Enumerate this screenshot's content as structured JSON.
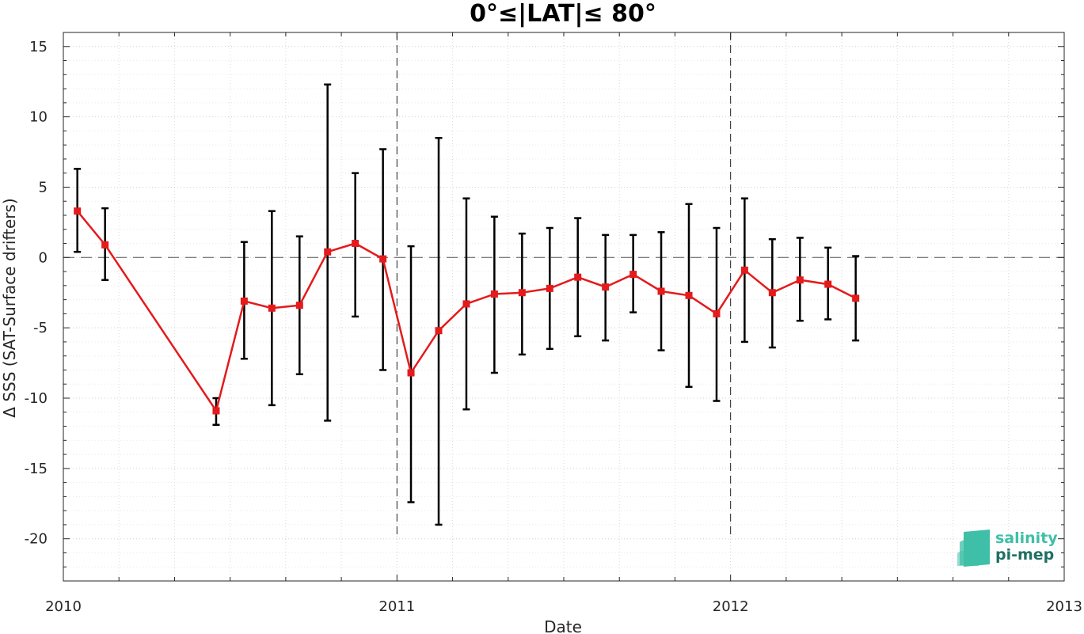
{
  "chart_data": {
    "type": "line",
    "title": "0°≤|LAT|≤ 80°",
    "xlabel": "Date",
    "ylabel": "Δ SSS (SAT-Surface drifters)",
    "xlim": [
      2010,
      2013
    ],
    "ylim": [
      -23,
      16
    ],
    "x_ticks": [
      "2010",
      "2011",
      "2012",
      "2013"
    ],
    "y_ticks": [
      15,
      10,
      5,
      0,
      -5,
      -10,
      -15,
      -20
    ],
    "y_tick_labels": [
      "15",
      "10",
      "5",
      "0",
      "-5",
      "-10",
      "-15",
      "-20"
    ],
    "grid": true,
    "zero_line": 0,
    "year_markers": [
      2011,
      2012
    ],
    "series": [
      {
        "color": "#e41a1c",
        "error_color": "#000000",
        "points": [
          {
            "x": 2010.042,
            "y": 3.3,
            "lower": 0.4,
            "upper": 6.3
          },
          {
            "x": 2010.125,
            "y": 0.9,
            "lower": -1.6,
            "upper": 3.5
          },
          {
            "x": 2010.458,
            "y": -10.9,
            "lower": -11.9,
            "upper": -10.0
          },
          {
            "x": 2010.542,
            "y": -3.1,
            "lower": -7.2,
            "upper": 1.1
          },
          {
            "x": 2010.625,
            "y": -3.6,
            "lower": -10.5,
            "upper": 3.3
          },
          {
            "x": 2010.708,
            "y": -3.4,
            "lower": -8.3,
            "upper": 1.5
          },
          {
            "x": 2010.792,
            "y": 0.4,
            "lower": -11.6,
            "upper": 12.3
          },
          {
            "x": 2010.875,
            "y": 1.0,
            "lower": -4.2,
            "upper": 6.0
          },
          {
            "x": 2010.958,
            "y": -0.1,
            "lower": -8.0,
            "upper": 7.7
          },
          {
            "x": 2011.042,
            "y": -8.2,
            "lower": -17.4,
            "upper": 0.8
          },
          {
            "x": 2011.125,
            "y": -5.2,
            "lower": -19.0,
            "upper": 8.5
          },
          {
            "x": 2011.208,
            "y": -3.3,
            "lower": -10.8,
            "upper": 4.2
          },
          {
            "x": 2011.292,
            "y": -2.6,
            "lower": -8.2,
            "upper": 2.9
          },
          {
            "x": 2011.375,
            "y": -2.5,
            "lower": -6.9,
            "upper": 1.7
          },
          {
            "x": 2011.458,
            "y": -2.2,
            "lower": -6.5,
            "upper": 2.1
          },
          {
            "x": 2011.542,
            "y": -1.4,
            "lower": -5.6,
            "upper": 2.8
          },
          {
            "x": 2011.625,
            "y": -2.1,
            "lower": -5.9,
            "upper": 1.6
          },
          {
            "x": 2011.708,
            "y": -1.2,
            "lower": -3.9,
            "upper": 1.6
          },
          {
            "x": 2011.792,
            "y": -2.4,
            "lower": -6.6,
            "upper": 1.8
          },
          {
            "x": 2011.875,
            "y": -2.7,
            "lower": -9.2,
            "upper": 3.8
          },
          {
            "x": 2011.958,
            "y": -4.0,
            "lower": -10.2,
            "upper": 2.1
          },
          {
            "x": 2012.042,
            "y": -0.9,
            "lower": -6.0,
            "upper": 4.2
          },
          {
            "x": 2012.125,
            "y": -2.5,
            "lower": -6.4,
            "upper": 1.3
          },
          {
            "x": 2012.208,
            "y": -1.6,
            "lower": -4.5,
            "upper": 1.4
          },
          {
            "x": 2012.292,
            "y": -1.9,
            "lower": -4.4,
            "upper": 0.7
          },
          {
            "x": 2012.375,
            "y": -2.9,
            "lower": -5.9,
            "upper": 0.1
          }
        ]
      }
    ]
  },
  "logo": {
    "line1": "salinity",
    "line2": "pi-mep",
    "color_light": "#3fbfa8",
    "color_dark": "#1f6f63"
  }
}
